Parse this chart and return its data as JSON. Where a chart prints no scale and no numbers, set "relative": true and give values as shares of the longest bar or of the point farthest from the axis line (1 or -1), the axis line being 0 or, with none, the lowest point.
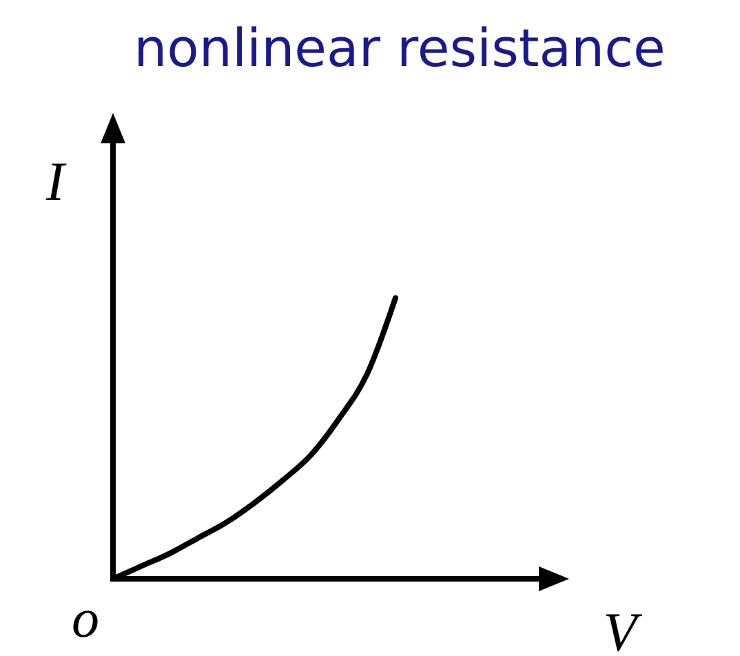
{
  "chart_data": {
    "type": "line",
    "title": "nonlinear resistance",
    "xlabel": "V",
    "ylabel": "I",
    "relative": true,
    "annotations": [
      "o"
    ],
    "categories": [
      null,
      null,
      null,
      null,
      null,
      null,
      null,
      null,
      null,
      null,
      null,
      null,
      null,
      null,
      null,
      null
    ],
    "series": [
      {
        "color": "#000000",
        "values": [
          0,
          0.045,
          0.09,
          0.145,
          0.2,
          0.27,
          0.35,
          0.44,
          0.57,
          0.73,
          1,
          null,
          null,
          null,
          null,
          null
        ]
      }
    ]
  }
}
